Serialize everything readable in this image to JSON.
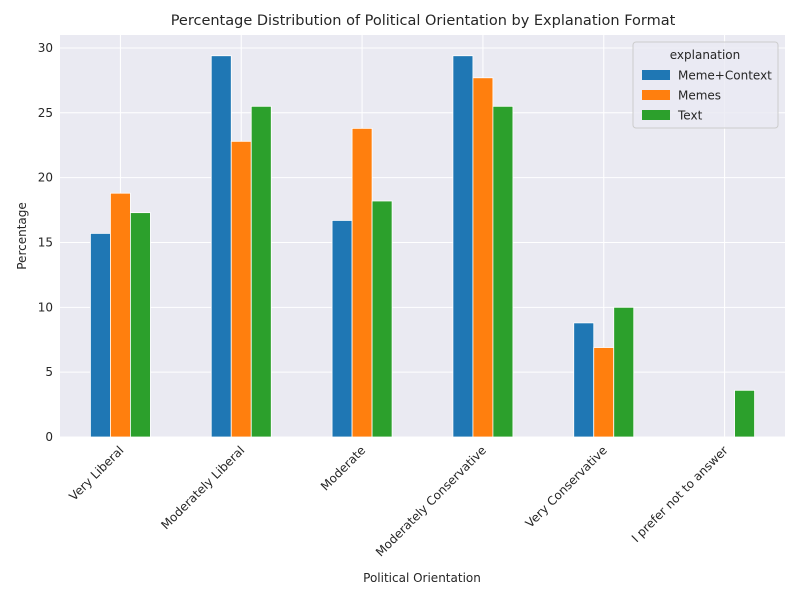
{
  "chart_data": {
    "type": "bar",
    "title": "Percentage Distribution of Political Orientation by Explanation Format",
    "xlabel": "Political Orientation",
    "ylabel": "Percentage",
    "ylim": [
      0,
      31
    ],
    "yticks": [
      0,
      5,
      10,
      15,
      20,
      25,
      30
    ],
    "grid": true,
    "legend": {
      "title": "explanation",
      "placement": "top-right"
    },
    "categories": [
      "Very Liberal",
      "Moderately Liberal",
      "Moderate",
      "Moderately Conservative",
      "Very Conservative",
      "I prefer not to answer"
    ],
    "series": [
      {
        "name": "Meme+Context",
        "color": "#1f77b4",
        "values": [
          15.7,
          29.4,
          16.7,
          29.4,
          8.8,
          0
        ]
      },
      {
        "name": "Memes",
        "color": "#ff7f0e",
        "values": [
          18.8,
          22.8,
          23.8,
          27.7,
          6.9,
          0
        ]
      },
      {
        "name": "Text",
        "color": "#2ca02c",
        "values": [
          17.3,
          25.5,
          18.2,
          25.5,
          10.0,
          3.6
        ]
      }
    ]
  }
}
